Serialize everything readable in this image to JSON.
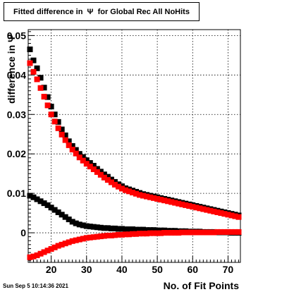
{
  "title": "Fitted difference in  Ψ  for Global Rec All NoHits",
  "datestamp": "Sun Sep  5 10:14:36 2021",
  "chart_data": {
    "type": "scatter",
    "xlabel": "No. of Fit Points",
    "ylabel": "difference in  Ψ",
    "xlim": [
      13.5,
      73.5
    ],
    "ylim": [
      -0.0075,
      0.0515
    ],
    "xticks": [
      20,
      30,
      40,
      50,
      60,
      70
    ],
    "xtick_labels": [
      "20",
      "30",
      "40",
      "50",
      "60",
      "70"
    ],
    "yticks": [
      0,
      0.01,
      0.02,
      0.03,
      0.04,
      0.05
    ],
    "ytick_labels": [
      "0",
      "0.01",
      "0.02",
      "0.03",
      "0.04",
      "0.05"
    ],
    "grid": true,
    "x": [
      14,
      15,
      16,
      17,
      18,
      19,
      20,
      21,
      22,
      23,
      24,
      25,
      26,
      27,
      28,
      29,
      30,
      31,
      32,
      33,
      34,
      35,
      36,
      37,
      38,
      39,
      40,
      41,
      42,
      43,
      44,
      45,
      46,
      47,
      48,
      49,
      50,
      51,
      52,
      53,
      54,
      55,
      56,
      57,
      58,
      59,
      60,
      61,
      62,
      63,
      64,
      65,
      66,
      67,
      68,
      69,
      70,
      71,
      72,
      73
    ],
    "series": [
      {
        "color": "#000000",
        "values": [
          0.0465,
          0.0437,
          0.0417,
          0.0393,
          0.0368,
          0.0344,
          0.032,
          0.03,
          0.0281,
          0.0262,
          0.0247,
          0.0232,
          0.022,
          0.021,
          0.02,
          0.0192,
          0.0184,
          0.0177,
          0.017,
          0.0162,
          0.0155,
          0.0148,
          0.0142,
          0.0135,
          0.0129,
          0.0123,
          0.0118,
          0.0113,
          0.011,
          0.0107,
          0.0104,
          0.0101,
          0.0098,
          0.0096,
          0.0094,
          0.0092,
          0.009,
          0.0088,
          0.0086,
          0.0084,
          0.0082,
          0.008,
          0.0078,
          0.0076,
          0.0074,
          0.0072,
          0.007,
          0.0068,
          0.0066,
          0.0064,
          0.0062,
          0.006,
          0.0058,
          0.0056,
          0.0054,
          0.0052,
          0.005,
          0.0048,
          0.0046,
          0.0044
        ]
      },
      {
        "color": "#ff0000",
        "values": [
          0.043,
          0.0408,
          0.0389,
          0.0367,
          0.0345,
          0.0323,
          0.03,
          0.0282,
          0.0265,
          0.0249,
          0.0235,
          0.0222,
          0.0211,
          0.0201,
          0.0191,
          0.0183,
          0.0175,
          0.0168,
          0.0161,
          0.0154,
          0.0147,
          0.014,
          0.0134,
          0.0128,
          0.0122,
          0.0117,
          0.0112,
          0.0108,
          0.0105,
          0.0102,
          0.0099,
          0.0096,
          0.0094,
          0.0092,
          0.009,
          0.0088,
          0.0086,
          0.0084,
          0.0082,
          0.008,
          0.0078,
          0.0076,
          0.0074,
          0.0072,
          0.007,
          0.0068,
          0.0066,
          0.0064,
          0.0062,
          0.006,
          0.0058,
          0.0056,
          0.0054,
          0.0052,
          0.005,
          0.0048,
          0.0046,
          0.0044,
          0.0042,
          0.004
        ]
      },
      {
        "color": "#000000",
        "values": [
          0.0094,
          0.009,
          0.0085,
          0.008,
          0.0075,
          0.007,
          0.0064,
          0.0058,
          0.0052,
          0.0046,
          0.004,
          0.0034,
          0.0028,
          0.0024,
          0.0021,
          0.0019,
          0.0017,
          0.0016,
          0.0015,
          0.0014,
          0.0013,
          0.0012,
          0.0012,
          0.0011,
          0.0011,
          0.001,
          0.001,
          0.0009,
          0.0009,
          0.0009,
          0.0008,
          0.0008,
          0.0008,
          0.0007,
          0.0007,
          0.0007,
          0.0006,
          0.0006,
          0.0006,
          0.0005,
          0.0005,
          0.0005,
          0.0004,
          0.0004,
          0.0004,
          0.0003,
          0.0003,
          0.0003,
          0.0003,
          0.0002,
          0.0002,
          0.0002,
          0.0002,
          0.0001,
          0.0001,
          0.0001,
          0.0001,
          0.0,
          0.0,
          0.0
        ]
      },
      {
        "color": "#ff0000",
        "values": [
          -0.0062,
          -0.006,
          -0.0057,
          -0.0053,
          -0.0049,
          -0.0045,
          -0.0041,
          -0.0037,
          -0.0033,
          -0.003,
          -0.0027,
          -0.0024,
          -0.0021,
          -0.0019,
          -0.0017,
          -0.0015,
          -0.0013,
          -0.0012,
          -0.0011,
          -0.001,
          -0.0009,
          -0.0008,
          -0.0007,
          -0.0007,
          -0.0006,
          -0.0005,
          -0.0005,
          -0.0004,
          -0.0004,
          -0.0003,
          -0.0003,
          -0.0002,
          -0.0002,
          -0.0002,
          -0.0001,
          -0.0001,
          -0.0001,
          -0.0001,
          0.0,
          0.0,
          0.0,
          0.0,
          0.0,
          0.0001,
          0.0001,
          0.0001,
          0.0001,
          0.0001,
          0.0001,
          0.0001,
          0.0001,
          0.0001,
          0.0001,
          0.0002,
          0.0002,
          0.0002,
          0.0002,
          0.0002,
          0.0002,
          0.0002
        ]
      }
    ]
  }
}
